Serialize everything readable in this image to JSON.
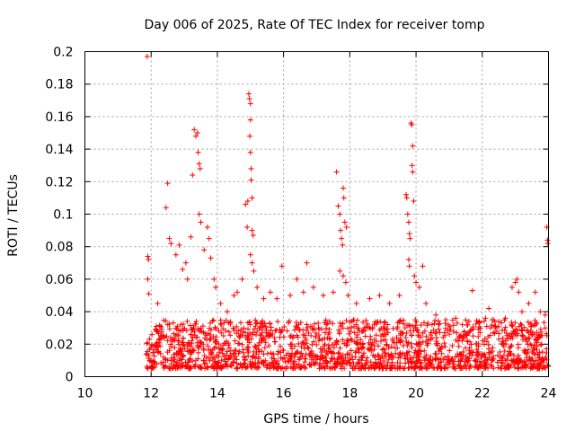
{
  "chart_data": {
    "type": "scatter",
    "title": "Day 006 of 2025, Rate Of TEC Index for receiver tomp",
    "xlabel": "GPS time / hours",
    "ylabel": "ROTI / TECUs",
    "xlim": [
      10,
      24
    ],
    "ylim": [
      0,
      0.2
    ],
    "grid": true,
    "marker": "+",
    "color": "#ff0000",
    "x_ticks": [
      10,
      12,
      14,
      16,
      18,
      20,
      22,
      24
    ],
    "x_tick_labels": [
      "10",
      "12",
      "14",
      "16",
      "18",
      "20",
      "22",
      "24"
    ],
    "y_ticks": [
      0,
      0.02,
      0.04,
      0.06,
      0.08,
      0.1,
      0.12,
      0.14,
      0.16,
      0.18,
      0.2
    ],
    "y_tick_labels": [
      "0",
      "0.02",
      "0.04",
      "0.06",
      "0.08",
      "0.1",
      "0.12",
      "0.14",
      "0.16",
      "0.18",
      "0.2"
    ],
    "data_start_hour": 11.85,
    "baseline_band": [
      0.005,
      0.035
    ],
    "series": [
      {
        "name": "ROTI",
        "points": [
          [
            11.88,
            0.197
          ],
          [
            11.9,
            0.074
          ],
          [
            11.92,
            0.072
          ],
          [
            11.9,
            0.06
          ],
          [
            11.93,
            0.051
          ],
          [
            12.2,
            0.045
          ],
          [
            12.45,
            0.104
          ],
          [
            12.5,
            0.119
          ],
          [
            12.55,
            0.085
          ],
          [
            12.6,
            0.082
          ],
          [
            12.75,
            0.075
          ],
          [
            12.85,
            0.081
          ],
          [
            12.95,
            0.066
          ],
          [
            13.05,
            0.07
          ],
          [
            13.1,
            0.06
          ],
          [
            13.2,
            0.086
          ],
          [
            13.25,
            0.124
          ],
          [
            13.3,
            0.152
          ],
          [
            13.35,
            0.148
          ],
          [
            13.4,
            0.15
          ],
          [
            13.42,
            0.138
          ],
          [
            13.45,
            0.131
          ],
          [
            13.48,
            0.128
          ],
          [
            13.45,
            0.1
          ],
          [
            13.5,
            0.095
          ],
          [
            13.6,
            0.078
          ],
          [
            13.7,
            0.092
          ],
          [
            13.75,
            0.085
          ],
          [
            13.8,
            0.073
          ],
          [
            13.9,
            0.06
          ],
          [
            13.95,
            0.055
          ],
          [
            14.1,
            0.045
          ],
          [
            14.3,
            0.04
          ],
          [
            14.5,
            0.05
          ],
          [
            14.6,
            0.052
          ],
          [
            14.75,
            0.06
          ],
          [
            14.85,
            0.106
          ],
          [
            14.9,
            0.092
          ],
          [
            14.92,
            0.108
          ],
          [
            14.95,
            0.174
          ],
          [
            14.97,
            0.171
          ],
          [
            15.0,
            0.168
          ],
          [
            15.0,
            0.158
          ],
          [
            14.98,
            0.148
          ],
          [
            15.0,
            0.138
          ],
          [
            15.02,
            0.128
          ],
          [
            15.02,
            0.121
          ],
          [
            15.05,
            0.11
          ],
          [
            15.05,
            0.09
          ],
          [
            15.08,
            0.087
          ],
          [
            15.0,
            0.075
          ],
          [
            15.05,
            0.07
          ],
          [
            15.1,
            0.065
          ],
          [
            15.2,
            0.055
          ],
          [
            15.4,
            0.048
          ],
          [
            15.6,
            0.052
          ],
          [
            15.8,
            0.048
          ],
          [
            15.95,
            0.068
          ],
          [
            16.2,
            0.05
          ],
          [
            16.4,
            0.06
          ],
          [
            16.6,
            0.052
          ],
          [
            16.7,
            0.07
          ],
          [
            16.9,
            0.055
          ],
          [
            17.2,
            0.05
          ],
          [
            17.5,
            0.052
          ],
          [
            17.6,
            0.126
          ],
          [
            17.65,
            0.105
          ],
          [
            17.7,
            0.1
          ],
          [
            17.72,
            0.09
          ],
          [
            17.75,
            0.085
          ],
          [
            17.78,
            0.081
          ],
          [
            17.8,
            0.116
          ],
          [
            17.82,
            0.11
          ],
          [
            17.85,
            0.095
          ],
          [
            17.9,
            0.092
          ],
          [
            17.7,
            0.065
          ],
          [
            17.8,
            0.062
          ],
          [
            17.88,
            0.058
          ],
          [
            17.95,
            0.05
          ],
          [
            18.2,
            0.045
          ],
          [
            18.6,
            0.048
          ],
          [
            18.9,
            0.05
          ],
          [
            19.2,
            0.045
          ],
          [
            19.5,
            0.05
          ],
          [
            19.7,
            0.112
          ],
          [
            19.72,
            0.11
          ],
          [
            19.75,
            0.1
          ],
          [
            19.78,
            0.095
          ],
          [
            19.8,
            0.088
          ],
          [
            19.82,
            0.085
          ],
          [
            19.78,
            0.072
          ],
          [
            19.8,
            0.068
          ],
          [
            19.85,
            0.156
          ],
          [
            19.87,
            0.155
          ],
          [
            19.9,
            0.142
          ],
          [
            19.88,
            0.13
          ],
          [
            19.9,
            0.126
          ],
          [
            19.93,
            0.108
          ],
          [
            19.95,
            0.062
          ],
          [
            20.0,
            0.058
          ],
          [
            20.1,
            0.055
          ],
          [
            20.2,
            0.068
          ],
          [
            20.3,
            0.045
          ],
          [
            20.6,
            0.038
          ],
          [
            20.9,
            0.035
          ],
          [
            21.2,
            0.036
          ],
          [
            21.4,
            0.032
          ],
          [
            21.6,
            0.034
          ],
          [
            21.7,
            0.053
          ],
          [
            21.9,
            0.034
          ],
          [
            22.1,
            0.036
          ],
          [
            22.2,
            0.042
          ],
          [
            22.3,
            0.035
          ],
          [
            22.5,
            0.034
          ],
          [
            22.7,
            0.036
          ],
          [
            22.9,
            0.055
          ],
          [
            23.0,
            0.058
          ],
          [
            23.05,
            0.06
          ],
          [
            23.1,
            0.052
          ],
          [
            23.2,
            0.04
          ],
          [
            23.4,
            0.045
          ],
          [
            23.6,
            0.052
          ],
          [
            23.75,
            0.04
          ],
          [
            23.9,
            0.038
          ],
          [
            23.95,
            0.092
          ],
          [
            23.97,
            0.084
          ],
          [
            23.98,
            0.082
          ],
          [
            23.9,
            0.03
          ]
        ]
      }
    ]
  }
}
